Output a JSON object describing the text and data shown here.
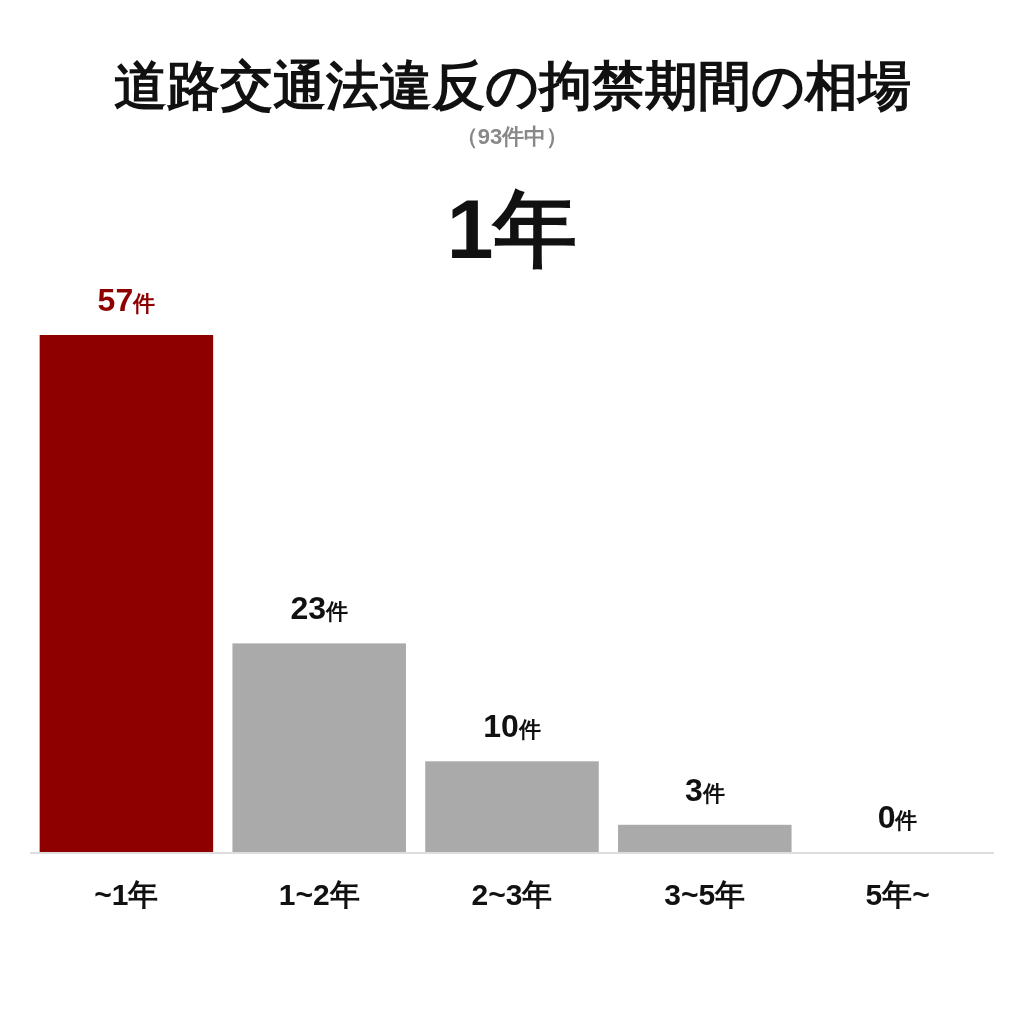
{
  "chart_data": {
    "type": "bar",
    "title": "道路交通法違反の拘禁期間の相場",
    "subtitle": "（93件中）",
    "annotations": [
      "1年"
    ],
    "categories": [
      "~1年",
      "1~2年",
      "2~3年",
      "3~5年",
      "5年~"
    ],
    "values": [
      57,
      23,
      10,
      3,
      0
    ],
    "colors": [
      "#8e0000",
      "#aaaaaa",
      "#aaaaaa",
      "#aaaaaa",
      "#aaaaaa"
    ],
    "value_labels": [
      "57件",
      "23件",
      "10件",
      "3件",
      "0件"
    ]
  }
}
